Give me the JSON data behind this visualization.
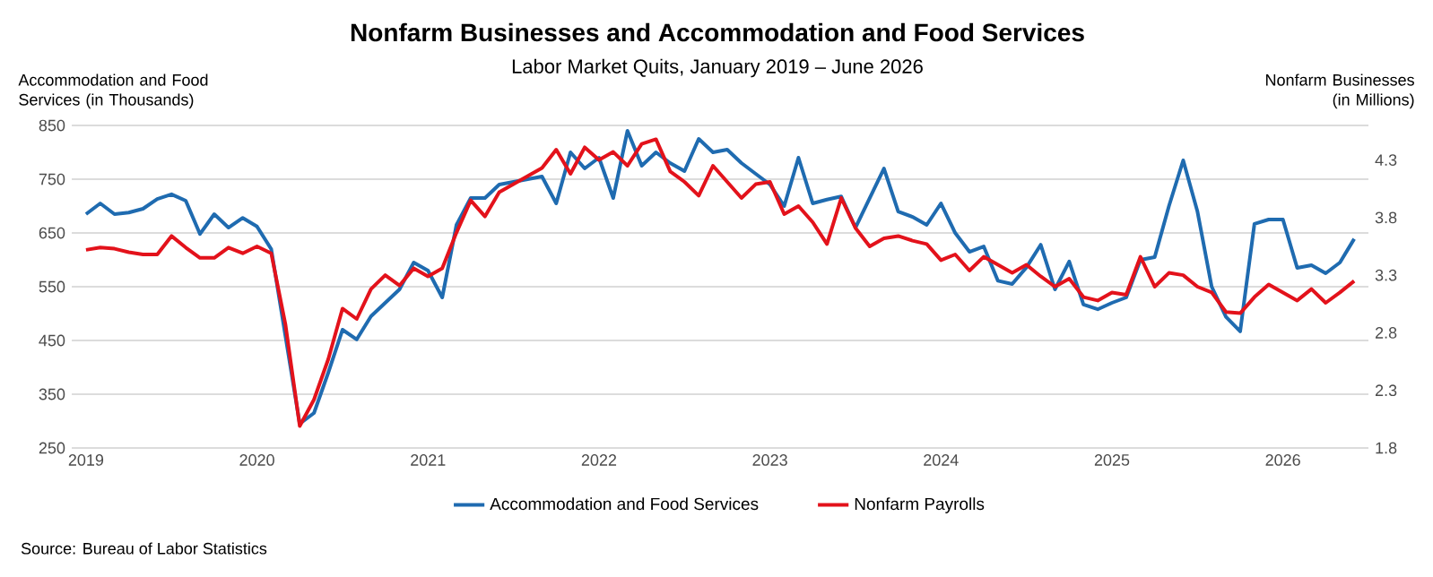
{
  "chart_data": {
    "type": "line",
    "title": "Nonfarm Businesses and Accommodation and Food Services",
    "subtitle": "Labor Market Quits, January 2019 – June 2026",
    "ylabel": "Accommodation and Food Services (in Thousands)",
    "y2label": "Nonfarm Businesses (in Millions)",
    "x": [
      "2019-01",
      "2019-02",
      "2019-03",
      "2019-04",
      "2019-05",
      "2019-06",
      "2019-07",
      "2019-08",
      "2019-09",
      "2019-10",
      "2019-11",
      "2019-12",
      "2020-01",
      "2020-02",
      "2020-03",
      "2020-04",
      "2020-05",
      "2020-06",
      "2020-07",
      "2020-08",
      "2020-09",
      "2020-10",
      "2020-11",
      "2020-12",
      "2021-01",
      "2021-02",
      "2021-03",
      "2021-04",
      "2021-05",
      "2021-06",
      "2021-07",
      "2021-08",
      "2021-09",
      "2021-10",
      "2021-11",
      "2021-12",
      "2022-01",
      "2022-02",
      "2022-03",
      "2022-04",
      "2022-05",
      "2022-06",
      "2022-07",
      "2022-08",
      "2022-09",
      "2022-10",
      "2022-11",
      "2022-12",
      "2023-01",
      "2023-02",
      "2023-03",
      "2023-04",
      "2023-05",
      "2023-06",
      "2023-07",
      "2023-08",
      "2023-09",
      "2023-10",
      "2023-11",
      "2023-12",
      "2024-01",
      "2024-02",
      "2024-03",
      "2024-04",
      "2024-05",
      "2024-06",
      "2024-07",
      "2024-08",
      "2024-09",
      "2024-10",
      "2024-11",
      "2024-12",
      "2025-01",
      "2025-02",
      "2025-03",
      "2025-04",
      "2025-05",
      "2025-06",
      "2025-07",
      "2025-08",
      "2025-09",
      "2025-10",
      "2025-11",
      "2025-12",
      "2026-01",
      "2026-02",
      "2026-03",
      "2026-04",
      "2026-05",
      "2026-06"
    ],
    "series": [
      {
        "name": "Accommodation and Food Services",
        "color": "#1f6bb0",
        "values": [
          685,
          705,
          685,
          688,
          695,
          713,
          722,
          710,
          648,
          685,
          660,
          678,
          662,
          620,
          null,
          295,
          315,
          390,
          470,
          452,
          495,
          520,
          545,
          595,
          580,
          530,
          665,
          715,
          715,
          740,
          745,
          750,
          755,
          705,
          800,
          770,
          790,
          715,
          840,
          775,
          800,
          780,
          765,
          825,
          800,
          805,
          780,
          760,
          740,
          700,
          790,
          705,
          712,
          718,
          660,
          715,
          770,
          690,
          680,
          665,
          705,
          650,
          615,
          625,
          561,
          555,
          586,
          628,
          545,
          597,
          517,
          508,
          520,
          530,
          600,
          605,
          700,
          785,
          690,
          550,
          494,
          467,
          667,
          675,
          675,
          585,
          590,
          575,
          595,
          639
        ]
      },
      {
        "name": "Nonfarm Payrolls",
        "color": "#e3121b",
        "axis": "y2",
        "values": [
          3.52,
          3.54,
          3.53,
          3.5,
          3.48,
          3.48,
          3.64,
          3.54,
          3.45,
          3.45,
          3.54,
          3.49,
          3.55,
          3.49,
          2.87,
          1.99,
          2.22,
          2.57,
          3.01,
          2.92,
          3.18,
          3.3,
          3.21,
          3.36,
          3.29,
          3.36,
          3.67,
          3.95,
          3.81,
          4.02,
          4.09,
          4.16,
          4.23,
          4.39,
          4.18,
          4.41,
          4.3,
          4.37,
          4.25,
          4.44,
          4.48,
          4.2,
          4.11,
          3.99,
          4.25,
          4.11,
          3.97,
          4.09,
          4.11,
          3.83,
          3.9,
          3.76,
          3.57,
          3.97,
          3.71,
          3.55,
          3.62,
          3.64,
          3.6,
          3.57,
          3.43,
          3.48,
          3.34,
          3.46,
          3.39,
          3.32,
          3.39,
          3.29,
          3.2,
          3.27,
          3.11,
          3.08,
          3.15,
          3.13,
          3.46,
          3.2,
          3.32,
          3.3,
          3.2,
          3.15,
          2.98,
          2.97,
          3.11,
          3.22,
          3.15,
          3.08,
          3.18,
          3.06,
          3.15,
          3.25
        ]
      }
    ],
    "xlim": [
      "2018-12",
      "2026-07"
    ],
    "xticks": [
      "2019",
      "2020",
      "2021",
      "2022",
      "2023",
      "2024",
      "2025",
      "2026"
    ],
    "ylim": [
      250,
      850
    ],
    "yticks": [
      250,
      350,
      450,
      550,
      650,
      750,
      850
    ],
    "y2lim": [
      1.8,
      4.6
    ],
    "y2ticks": [
      1.8,
      2.3,
      2.8,
      3.3,
      3.8,
      4.3
    ],
    "grid": "y",
    "legend": "bottom",
    "marker": "none",
    "line_style": "solid",
    "annotations": [
      "Source: Bureau of Labor Statistics"
    ]
  }
}
